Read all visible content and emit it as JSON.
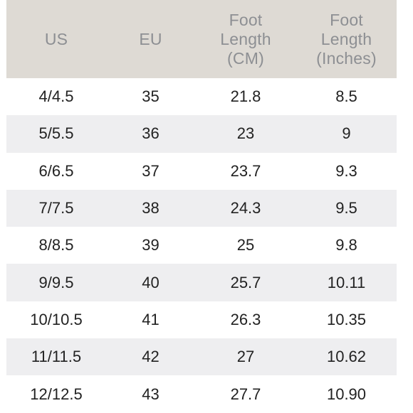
{
  "header": {
    "us": [
      "US"
    ],
    "eu": [
      "EU"
    ],
    "cm": [
      "Foot",
      "Length",
      "(CM)"
    ],
    "inches": [
      "Foot",
      "Length",
      "(Inches)"
    ]
  },
  "rows": [
    {
      "us": "4/4.5",
      "eu": "35",
      "cm": "21.8",
      "in": "8.5"
    },
    {
      "us": "5/5.5",
      "eu": "36",
      "cm": "23",
      "in": "9"
    },
    {
      "us": "6/6.5",
      "eu": "37",
      "cm": "23.7",
      "in": "9.3"
    },
    {
      "us": "7/7.5",
      "eu": "38",
      "cm": "24.3",
      "in": "9.5"
    },
    {
      "us": "8/8.5",
      "eu": "39",
      "cm": "25",
      "in": "9.8"
    },
    {
      "us": "9/9.5",
      "eu": "40",
      "cm": "25.7",
      "in": "10.11"
    },
    {
      "us": "10/10.5",
      "eu": "41",
      "cm": "26.3",
      "in": "10.35"
    },
    {
      "us": "11/11.5",
      "eu": "42",
      "cm": "27",
      "in": "10.62"
    },
    {
      "us": "12/12.5",
      "eu": "43",
      "cm": "27.7",
      "in": "10.90"
    }
  ],
  "colors": {
    "header_bg": "#dedad4",
    "header_text": "#8d8f93",
    "stripe_bg": "#eeeef0",
    "body_text": "#222222"
  }
}
